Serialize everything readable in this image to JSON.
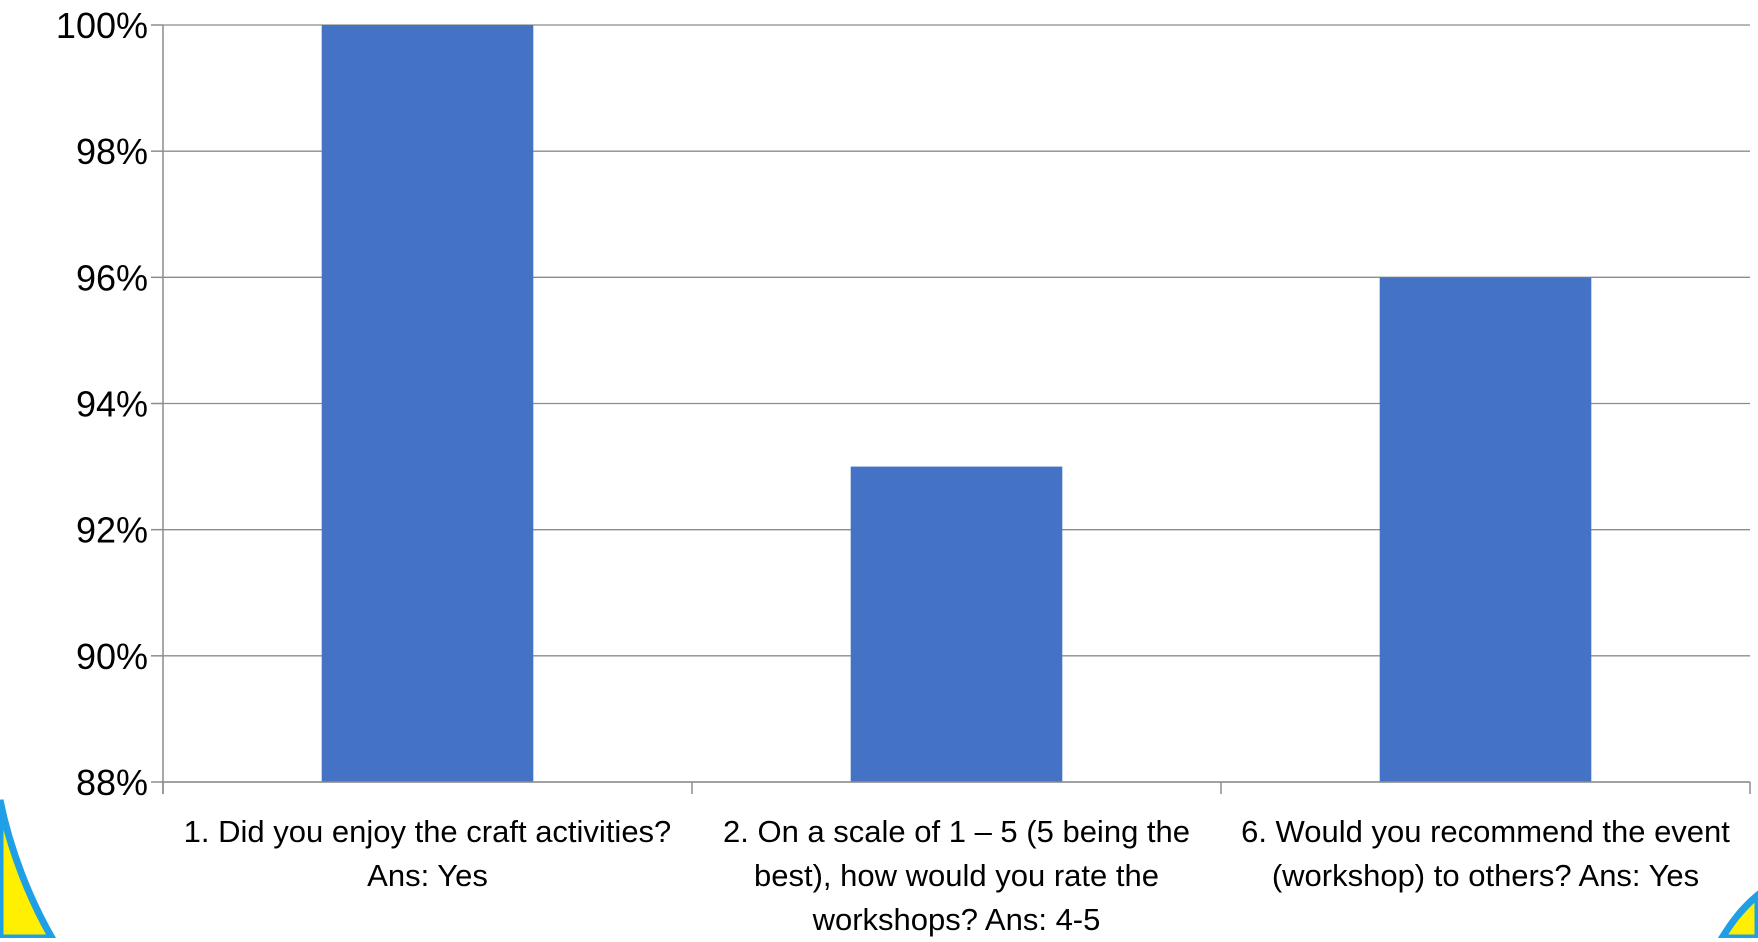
{
  "chart_data": {
    "type": "bar",
    "categories": [
      "1. Did you enjoy the craft activities? Ans: Yes",
      "2.  On a scale of 1 – 5 (5 being the best), how would you rate the workshops? Ans: 4-5",
      "6. Would you recommend the event (workshop) to others? Ans: Yes"
    ],
    "values": [
      100,
      93,
      96
    ],
    "ylim": [
      88,
      100
    ],
    "yticks": [
      "88%",
      "90%",
      "92%",
      "94%",
      "96%",
      "98%",
      "100%"
    ],
    "grid": true,
    "bar_color": "#4472c4",
    "corner_decoration_colors": [
      "#1e9fe6",
      "#ffef00"
    ]
  }
}
